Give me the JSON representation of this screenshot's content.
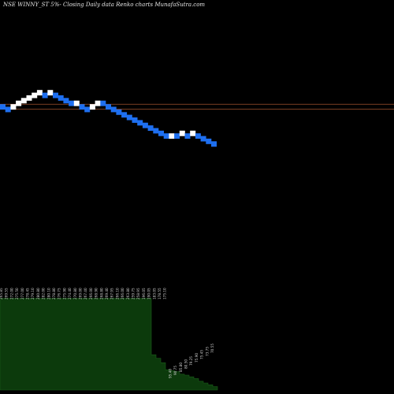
{
  "header": {
    "title": "NSE WINNY_ST 5%-   Closing Daily data  Renko  charts MunafaSutra.com"
  },
  "chart_data": {
    "type": "renko",
    "title": "NSE WINNY_ST 5%-   Closing Daily data  Renko  charts MunafaSutra.com",
    "colors": {
      "up": "#ffffff",
      "down": "#1e6ff0",
      "line": "#a0522d",
      "volume_fill": "#0c3a0c",
      "volume_line": "#1a5c1a",
      "label": "#cfcfcf"
    },
    "bricks": [
      {
        "price": 268,
        "dir": "down"
      },
      {
        "price": 265,
        "dir": "down"
      },
      {
        "price": 268,
        "dir": "up"
      },
      {
        "price": 272,
        "dir": "up"
      },
      {
        "price": 275,
        "dir": "up"
      },
      {
        "price": 278,
        "dir": "up"
      },
      {
        "price": 281,
        "dir": "up"
      },
      {
        "price": 284,
        "dir": "up"
      },
      {
        "price": 281,
        "dir": "down"
      },
      {
        "price": 284,
        "dir": "up"
      },
      {
        "price": 281,
        "dir": "down"
      },
      {
        "price": 278,
        "dir": "down"
      },
      {
        "price": 275,
        "dir": "down"
      },
      {
        "price": 272,
        "dir": "down"
      },
      {
        "price": 272,
        "dir": "up"
      },
      {
        "price": 268,
        "dir": "down"
      },
      {
        "price": 265,
        "dir": "down"
      },
      {
        "price": 268,
        "dir": "up"
      },
      {
        "price": 272,
        "dir": "up"
      },
      {
        "price": 272,
        "dir": "down"
      },
      {
        "price": 268,
        "dir": "down"
      },
      {
        "price": 265,
        "dir": "down"
      },
      {
        "price": 262,
        "dir": "down"
      },
      {
        "price": 259,
        "dir": "down"
      },
      {
        "price": 256,
        "dir": "down"
      },
      {
        "price": 253,
        "dir": "down"
      },
      {
        "price": 250,
        "dir": "down"
      },
      {
        "price": 247,
        "dir": "down"
      },
      {
        "price": 244,
        "dir": "down"
      },
      {
        "price": 241,
        "dir": "down"
      },
      {
        "price": 238,
        "dir": "down"
      },
      {
        "price": 235,
        "dir": "down"
      },
      {
        "price": 235,
        "dir": "up"
      },
      {
        "price": 235,
        "dir": "down"
      },
      {
        "price": 238,
        "dir": "up"
      },
      {
        "price": 235,
        "dir": "down"
      },
      {
        "price": 238,
        "dir": "up"
      },
      {
        "price": 235,
        "dir": "down"
      },
      {
        "price": 232,
        "dir": "down"
      },
      {
        "price": 229,
        "dir": "down"
      },
      {
        "price": 226,
        "dir": "down"
      }
    ],
    "price_range": [
      175,
      330
    ],
    "reference_lines": [
      271,
      265.5
    ],
    "volume_labels": [
      "265.85",
      "269.55",
      "272.00",
      "275.50",
      "277.00",
      "278.45",
      "279.10",
      "280.80",
      "282.00",
      "280.10",
      "278.80",
      "276.75",
      "275.90",
      "274.40",
      "270.80",
      "269.00",
      "267.40",
      "266.00",
      "268.90",
      "268.80",
      "269.40",
      "267.95",
      "266.10",
      "266.00",
      "263.80",
      "259.75",
      "258.95",
      "196.05",
      "190.05",
      "183.05",
      "178.55",
      "175.10",
      "95.40",
      "90.75",
      "85.80",
      "80.50",
      "79.25",
      "75.90",
      "75.45",
      "73.75",
      "70.55"
    ],
    "volume": [
      104,
      104,
      104,
      104,
      104,
      104,
      104,
      104,
      104,
      104,
      104,
      104,
      104,
      104,
      104,
      104,
      104,
      104,
      104,
      104,
      104,
      104,
      104,
      104,
      104,
      104,
      104,
      104,
      104,
      104,
      104,
      104,
      40,
      36,
      31,
      23,
      22,
      21,
      18,
      17,
      15,
      13,
      10,
      8,
      6,
      4
    ]
  }
}
